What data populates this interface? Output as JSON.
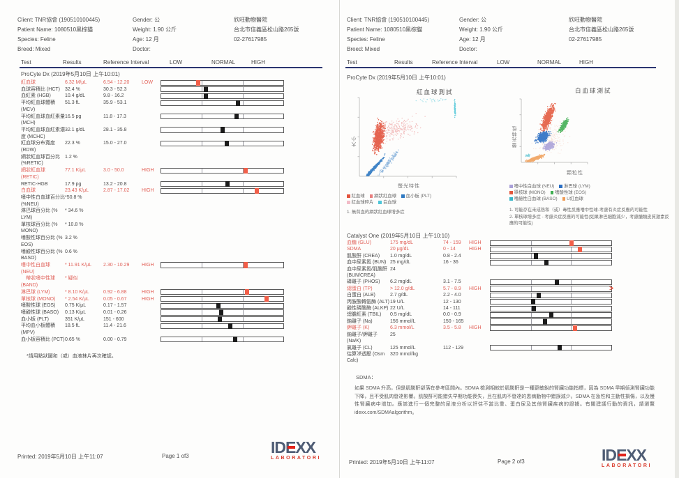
{
  "patient": {
    "client": "Client: TNR協會 (190510100445)",
    "name": "Patient Name: 1080510黑棕貓",
    "species": "Species: Feline",
    "breed": "Breed: Mixed",
    "gender": "Gender: 公",
    "weight": "Weight: 1.90 公斤",
    "age": "Age: 12 月",
    "doctor": "Doctor:",
    "clinic_name": "欣旺動物醫院",
    "clinic_address": "台北市信義區松山路265號",
    "clinic_phone": "02-27617985"
  },
  "table_header": {
    "test": "Test",
    "results": "Results",
    "ref": "Reference Interval",
    "low": "LOW",
    "normal": "NORMAL",
    "high": "HIGH"
  },
  "page1": {
    "section_title": "ProCyte Dx (2019年5月10日 上午10:01)",
    "rows": [
      {
        "name": [
          "紅血球"
        ],
        "result": "6.32 M/μL",
        "ref": "6.54 - 12.20",
        "flag": "LOW",
        "red": true,
        "bar": {
          "pos": 0.3,
          "red": true
        }
      },
      {
        "name": [
          "血球容積比 (HCT)"
        ],
        "result": "32.4 %",
        "ref": "30.3 - 52.3",
        "bar": {
          "pos": 0.365
        }
      },
      {
        "name": [
          "血紅素 (HGB)"
        ],
        "result": "10.4 g/dL",
        "ref": "9.8 - 16.2",
        "bar": {
          "pos": 0.365
        }
      },
      {
        "name": [
          "平均紅血球體積",
          "(MCV)"
        ],
        "result": "51.3 fL",
        "ref": "35.9 - 53.1",
        "bar": {
          "pos": 0.63
        }
      },
      {
        "name": [
          "平均紅血球血紅素量",
          "(MCH)"
        ],
        "result": "16.5 pg",
        "ref": "11.8 - 17.3",
        "bar": {
          "pos": 0.615
        }
      },
      {
        "name": [
          "平均紅血球血紅素濃",
          "度 (MCHC)"
        ],
        "result": "32.1 g/dL",
        "ref": "28.1 - 35.8",
        "bar": {
          "pos": 0.505
        }
      },
      {
        "name": [
          "紅血球分布寬度",
          "(RDW)"
        ],
        "result": "22.3 %",
        "ref": "15.0 - 27.0",
        "bar": {
          "pos": 0.535
        }
      },
      {
        "name": [
          "網狀紅血球百分比",
          "(%RETIC)"
        ],
        "result": "1.2 %"
      },
      {
        "name": [
          "網狀紅血球",
          "(RETIC)"
        ],
        "result": "77.1 K/μL",
        "ref": "3.0 - 50.0",
        "flag": "HIGH",
        "red": true,
        "bar": {
          "pos": 0.69,
          "red": true
        }
      },
      {
        "name": [
          "RETIC-HGB"
        ],
        "result": "17.9 pg",
        "ref": "13.2 - 20.8",
        "bar": {
          "pos": 0.54
        }
      },
      {
        "name": [
          "白血球"
        ],
        "result": "23.43 K/μL",
        "ref": "2.87 - 17.02",
        "flag": "HIGH",
        "red": true,
        "bar": {
          "pos": 0.78,
          "red": true
        }
      },
      {
        "name": [
          "嗜中性白血球百分比*",
          "(%NEU)"
        ],
        "result": "50.8 %"
      },
      {
        "name": [
          "淋巴球百分比 (%",
          "LYM)"
        ],
        "result": "* 34.6 %"
      },
      {
        "name": [
          "單核球百分比 (%",
          "MONO)"
        ],
        "result": "* 10.8 %"
      },
      {
        "name": [
          "嗜酸性球百分比 (%",
          "EOS)"
        ],
        "result": "3.2 %"
      },
      {
        "name": [
          "嗜鹼性球百分比 (%",
          "BASO)"
        ],
        "result": "0.6 %"
      },
      {
        "name": [
          "嗜中性白血球",
          "(NEU)"
        ],
        "result": "* 11.91 K/μL",
        "ref": "2.30 - 10.29",
        "flag": "HIGH",
        "red": true,
        "bar": {
          "pos": 0.69,
          "red": true
        }
      },
      {
        "name": [
          "帶狀嗜中性球",
          "(BAND)"
        ],
        "result": "* 疑似",
        "red": true,
        "indent": true
      },
      {
        "name": [
          "淋巴球 (LYM)"
        ],
        "result": "* 8.10 K/μL",
        "ref": "0.92 - 6.88",
        "flag": "HIGH",
        "red": true,
        "bar": {
          "pos": 0.7,
          "red": true
        }
      },
      {
        "name": [
          "單核球 (MONO)"
        ],
        "result": "* 2.54 K/μL",
        "ref": "0.05 - 0.67",
        "flag": "HIGH",
        "red": true,
        "bar": {
          "pos": 0.86,
          "red": true
        }
      },
      {
        "name": [
          "嗜酸性球 (EOS)"
        ],
        "result": "0.75 K/μL",
        "ref": "0.17 - 1.57",
        "bar": {
          "pos": 0.47
        }
      },
      {
        "name": [
          "嗜鹼性球 (BASO)"
        ],
        "result": "0.13 K/μL",
        "ref": "0.01 - 0.26",
        "bar": {
          "pos": 0.49
        }
      },
      {
        "name": [
          "血小板 (PLT)"
        ],
        "result": "351 K/μL",
        "ref": "151 - 600",
        "bar": {
          "pos": 0.48
        }
      },
      {
        "name": [
          "平均血小板體積",
          "(MPV)"
        ],
        "result": "18.5 fL",
        "ref": "11.4 - 21.6",
        "bar": {
          "pos": 0.565
        }
      },
      {
        "name": [
          "血小板容積比 (PCT)"
        ],
        "result": "0.65 %",
        "ref": "0.00 - 0.79",
        "bar": {
          "pos": 0.605
        }
      }
    ],
    "footnote": "*請用點狀圖和（或）血液抹片再次確認。",
    "printed": "Printed: 2019年5月10日 上午11:07",
    "page_label": "Page 1 of3"
  },
  "page2": {
    "procyte_title": "ProCyte Dx (2019年5月10日 上午10:01)",
    "catalyst_title": "Catalyst One (2019年5月10日 上午10:10)",
    "rows": [
      {
        "name": [
          "血糖 (GLU)"
        ],
        "result": "175 mg/dL",
        "ref": "74 - 159",
        "flag": "HIGH",
        "red": true,
        "bar": {
          "pos": 0.67,
          "red": true
        }
      },
      {
        "name": [
          "SDMA"
        ],
        "result": "20 μg/dL",
        "ref": "0 - 14",
        "flag": "HIGH",
        "red": true,
        "bar": {
          "pos": 0.74,
          "red": true
        }
      },
      {
        "name": [
          "肌酸酐 (CREA)"
        ],
        "result": "1.0 mg/dL",
        "ref": "0.8 - 2.4",
        "bar": {
          "pos": 0.375
        }
      },
      {
        "name": [
          "血中尿素氮 (BUN)"
        ],
        "result": "25 mg/dL",
        "ref": "16 - 36",
        "bar": {
          "pos": 0.46
        }
      },
      {
        "name": [
          "血中尿素氮/肌酸酐",
          "(BUN/CREA)"
        ],
        "result": "24"
      },
      {
        "name": [
          "磷離子 (PHOS)"
        ],
        "result": "6.2 mg/dL",
        "ref": "3.1 - 7.5",
        "bar": {
          "pos": 0.55
        }
      },
      {
        "name": [
          "總蛋白 (TP)"
        ],
        "result": "> 12.0 g/dL",
        "ref": "5.7 - 8.9",
        "flag": "HIGH",
        "red": true,
        "bar": {
          "overflow": true
        }
      },
      {
        "name": [
          "白蛋白 (ALB)"
        ],
        "result": "2.7 g/dL",
        "ref": "2.2 - 4.0",
        "bar": {
          "pos": 0.4
        }
      },
      {
        "name": [
          "丙胺酸轉氨酶 (ALT)"
        ],
        "result": "19 U/L",
        "ref": "12 - 130",
        "bar": {
          "pos": 0.35
        }
      },
      {
        "name": [
          "鹼性磷酸酶 (ALKP)"
        ],
        "result": "22 U/L",
        "ref": "14 - 111",
        "bar": {
          "pos": 0.36
        }
      },
      {
        "name": [
          "總膽紅素 (TBIL)"
        ],
        "result": "0.5 mg/dL",
        "ref": "0.0 - 0.9",
        "bar": {
          "pos": 0.5
        }
      },
      {
        "name": [
          "鈉離子 (Na)"
        ],
        "result": "156 mmol/L",
        "ref": "150 - 165",
        "bar": {
          "pos": 0.45
        }
      },
      {
        "name": [
          "鉀離子 (K)"
        ],
        "result": "6.3 mmol/L",
        "ref": "3.5 - 5.8",
        "flag": "HIGH",
        "red": true,
        "bar": {
          "pos": 0.7,
          "red": true
        }
      },
      {
        "name": [
          "鈉離子/鉀離子",
          "(Na/K)"
        ],
        "result": "25"
      },
      {
        "name": [
          "氯離子 (CL)"
        ],
        "result": "125 mmol/L",
        "ref": "112 - 129",
        "bar": {
          "pos": 0.57
        }
      },
      {
        "name": [
          "估算滲透壓 (Osm",
          "Calc)"
        ],
        "result": "320 mmol/kg"
      }
    ],
    "sdma_heading": "SDMA：",
    "sdma_note": "如果 SDMA 升高，但是肌酸酐卻落在參考區間內。SDMA 檢測相較於肌酸酐是一種更敏銳的腎臟功能指標，因為 SDMA 早期偵測腎臟功能下降，且不受肌肉發達影響。肌酸酐可能錯失早期功能喪失，且在肌肉不發達的患病動物中錯誤減少。SDMA 在急性和主動性損傷，以及慢性腎臟病中增加。應該進行一個完整的尿液分析以評估不當比重、蛋白尿及其他腎臟疾病的證據。有關建議行動的資訊，請瀏覽 idexx.com/SDMAalgorithm。",
    "printed": "Printed: 2019年5月10日 上午11:07",
    "page_label": "Page 2 of3"
  },
  "chart_data": [
    {
      "type": "scatter",
      "title": "紅血球測試",
      "xlabel": "螢光特性",
      "ylabel": "大小",
      "legend_position": "bottom",
      "grid": false,
      "legend": [
        {
          "label": "紅血球",
          "color": "#e3543e"
        },
        {
          "label": "網狀紅血球",
          "color": "#e87f7f"
        },
        {
          "label": "血小板 (PLT)",
          "color": "#2e79c2"
        },
        {
          "label": "紅血球碎片",
          "color": "#f2bcc8"
        },
        {
          "label": "白血球",
          "color": "#4fc6d8"
        }
      ],
      "legend_rows": [
        [
          0,
          1,
          2
        ],
        [
          3,
          4
        ]
      ],
      "notes": [
        "1. 無貧血的網狀紅血球增多症"
      ],
      "seed": 11,
      "clusters": [
        {
          "name": "紅血球",
          "color": "#e3543e",
          "cx": 0.2,
          "cy": 0.5,
          "sx": 0.045,
          "sy": 0.16,
          "slope": 0.12,
          "n": 760,
          "r": 0.8,
          "opacity": 0.9
        },
        {
          "name": "網狀紅血球",
          "color": "#e87f7f",
          "cx": 0.4,
          "cy": 0.6,
          "sx": 0.19,
          "sy": 0.13,
          "slope": 0.5,
          "n": 230,
          "r": 0.7,
          "opacity": 0.5
        },
        {
          "name": "血小板",
          "color": "#2e79c2",
          "cx": 0.13,
          "cy": 0.075,
          "sx": 0.1,
          "sy": 0.02,
          "yslope": 0.45,
          "n": 620,
          "r": 0.75,
          "opacity": 0.9
        },
        {
          "name": "血小板尾端",
          "color": "#2e79c2",
          "cx": 0.3,
          "cy": 0.17,
          "sx": 0.1,
          "sy": 0.045,
          "yslope": 0.5,
          "n": 130,
          "r": 0.7,
          "opacity": 0.5
        },
        {
          "name": "白血球",
          "color": "#4fc6d8",
          "cx": 0.985,
          "cy": 0.86,
          "sx": 0.006,
          "sy": 0.09,
          "n": 80,
          "r": 0.7,
          "opacity": 0.85
        },
        {
          "name": "白血球散點",
          "color": "#4fc6d8",
          "cx": 0.78,
          "cy": 0.97,
          "sx": 0.2,
          "sy": 0.035,
          "n": 30,
          "r": 0.7,
          "opacity": 0.5
        }
      ]
    },
    {
      "type": "scatter",
      "title": "白血球測試",
      "xlabel": "顆粒性",
      "ylabel": "螢光特性",
      "legend_position": "bottom",
      "grid": false,
      "legend": [
        {
          "label": "嗜中性白血球 (NEU)",
          "color": "#a9a0d8"
        },
        {
          "label": "淋巴球 (LYM)",
          "color": "#2b6fc4"
        },
        {
          "label": "單核球 (MONO)",
          "color": "#e3573c"
        },
        {
          "label": "嗜酸性球 (EOS)",
          "color": "#3fae52"
        },
        {
          "label": "嗜鹼性白血球 (BASO)",
          "color": "#38b6c8"
        },
        {
          "label": "U紅血球",
          "color": "#f09c55"
        }
      ],
      "legend_rows": [
        [
          0,
          1
        ],
        [
          2,
          3
        ],
        [
          4,
          5
        ]
      ],
      "notes": [
        "1. 可能存在未成熟和（或）毒性反應嗜中性球-考慮有炎症反應的可能性",
        "2. 單核球增多症 - 考慮炎症反應的可能性(如果淋巴細胞減少，考慮醣類皮質激素反應的可能性)"
      ],
      "seed": 29,
      "clusters": [
        {
          "name": "背景散點",
          "color": "#f2c4b4",
          "cx": 0.45,
          "cy": 0.4,
          "sx": 0.22,
          "sy": 0.22,
          "n": 200,
          "r": 0.7,
          "opacity": 0.4
        },
        {
          "name": "單核球",
          "color": "#e3573c",
          "cx": 0.4,
          "cy": 0.7,
          "sx": 0.055,
          "sy": 0.17,
          "slope": 0.35,
          "n": 800,
          "r": 0.75,
          "opacity": 0.88
        },
        {
          "name": "嗜酸性球",
          "color": "#3fae52",
          "cx": 0.64,
          "cy": 0.58,
          "sx": 0.035,
          "sy": 0.095,
          "slope": 0.5,
          "n": 300,
          "r": 0.75,
          "opacity": 0.88
        },
        {
          "name": "淋巴球",
          "color": "#2b6fc4",
          "cx": 0.33,
          "cy": 0.4,
          "sx": 0.075,
          "sy": 0.075,
          "slope": 0.45,
          "n": 560,
          "r": 0.75,
          "opacity": 0.9
        },
        {
          "name": "嗜中性白血球",
          "color": "#a9a0d8",
          "cx": 0.42,
          "cy": 0.26,
          "sx": 0.06,
          "sy": 0.055,
          "slope": 0.5,
          "n": 380,
          "r": 0.75,
          "opacity": 0.88
        },
        {
          "name": "嗜鹼性白血球",
          "color": "#38b6c8",
          "cx": 0.1,
          "cy": 0.11,
          "sx": 0.03,
          "sy": 0.02,
          "n": 40,
          "r": 0.7,
          "opacity": 0.6
        },
        {
          "name": "U紅血球",
          "color": "#f09c55",
          "cx": 0.2,
          "cy": 0.055,
          "sx": 0.12,
          "sy": 0.025,
          "yslope": 0.12,
          "n": 380,
          "r": 0.75,
          "opacity": 0.85
        }
      ]
    }
  ],
  "logo": {
    "name": "IDEXX",
    "sub": "LABORATORI"
  },
  "colors": {
    "flag_red": "#e25f55",
    "marker_red": "#f15f49",
    "marker_black": "#1b1b1b",
    "header_rule": "#2b3570",
    "logo_blue": "#4e5c74",
    "logo_red": "#d93a2b"
  }
}
